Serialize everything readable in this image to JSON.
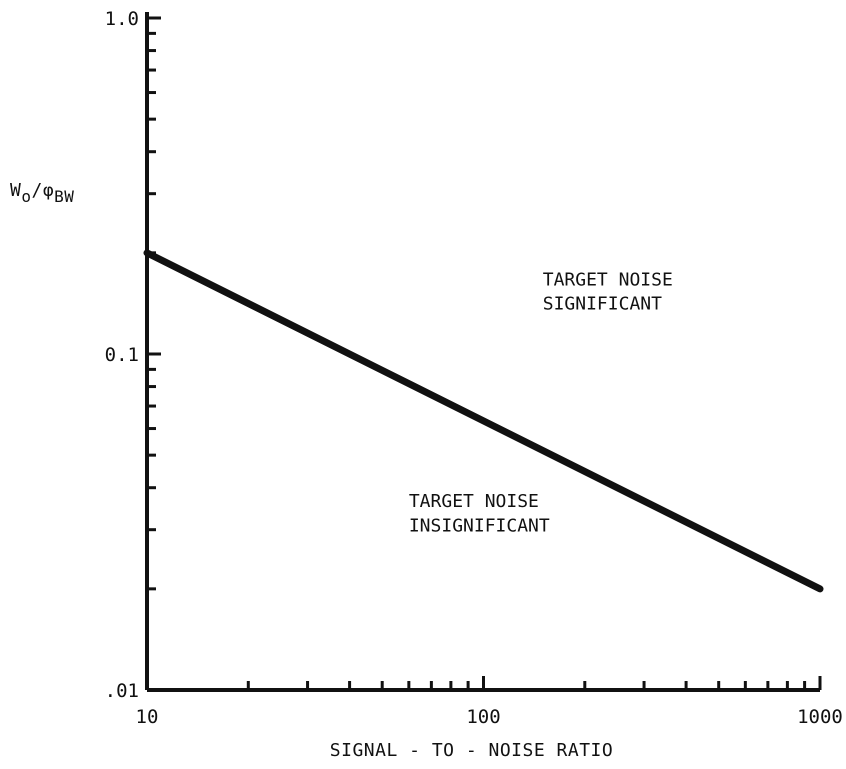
{
  "chart_data": {
    "type": "line",
    "xscale": "log",
    "yscale": "log",
    "xlim": [
      10,
      1000
    ],
    "ylim": [
      0.01,
      1.0
    ],
    "x_ticks": [
      10,
      20,
      30,
      40,
      50,
      60,
      70,
      80,
      90,
      100,
      200,
      300,
      400,
      500,
      600,
      700,
      800,
      900,
      1000
    ],
    "y_ticks": [
      0.01,
      0.02,
      0.03,
      0.04,
      0.05,
      0.06,
      0.07,
      0.08,
      0.09,
      0.1,
      0.2,
      0.3,
      0.4,
      0.5,
      0.6,
      0.7,
      0.8,
      0.9,
      1.0
    ],
    "x_tick_labels": [
      {
        "value": 10,
        "text": "10"
      },
      {
        "value": 100,
        "text": "100"
      },
      {
        "value": 1000,
        "text": "1000"
      }
    ],
    "y_tick_labels": [
      {
        "value": 1.0,
        "text": "1.0"
      },
      {
        "value": 0.1,
        "text": "0.1"
      },
      {
        "value": 0.01,
        "text": ".01"
      }
    ],
    "xlabel": "SIGNAL - TO - NOISE RATIO",
    "ylabel": {
      "main": "W",
      "sub1": "o",
      "mid": "/φ",
      "sub2": "BW"
    },
    "series": [
      {
        "x": [
          10,
          1000
        ],
        "y": [
          0.2,
          0.02
        ]
      }
    ],
    "annotations": [
      {
        "lines": [
          "TARGET NOISE",
          "SIGNIFICANT"
        ],
        "x": 150,
        "y": 0.16
      },
      {
        "lines": [
          "TARGET NOISE",
          "INSIGNIFICANT"
        ],
        "x": 60,
        "y": 0.035
      }
    ],
    "grid": false,
    "legend": "none"
  }
}
